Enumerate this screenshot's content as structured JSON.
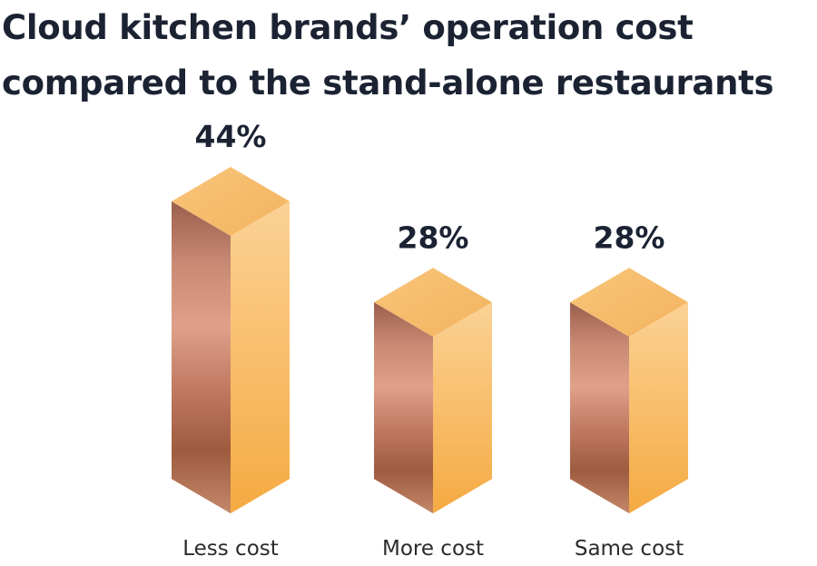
{
  "title_lines": [
    "Cloud kitchen brands’ operation cost",
    "compared to the stand-alone restaurants"
  ],
  "colors": {
    "title": "#1b2333",
    "value_label": "#1b2333",
    "category_label": "#2b2b2b",
    "top_face": "#f6bd6e",
    "front_face_light": "#fbd295",
    "front_face_dark": "#f5aa42",
    "side_face_dark": "#9a5f4d",
    "side_face_light": "#dfa08a"
  },
  "chart_data": {
    "type": "bar",
    "style": "3d-isometric-prism",
    "title": "Cloud kitchen brands’ operation cost compared to the stand-alone restaurants",
    "categories": [
      "Less cost",
      "More cost",
      "Same cost"
    ],
    "values": [
      44,
      28,
      28
    ],
    "value_labels": [
      "44%",
      "28%",
      "28%"
    ],
    "unit": "%",
    "ylim": [
      0,
      44
    ],
    "grid": false,
    "legend": "none"
  }
}
